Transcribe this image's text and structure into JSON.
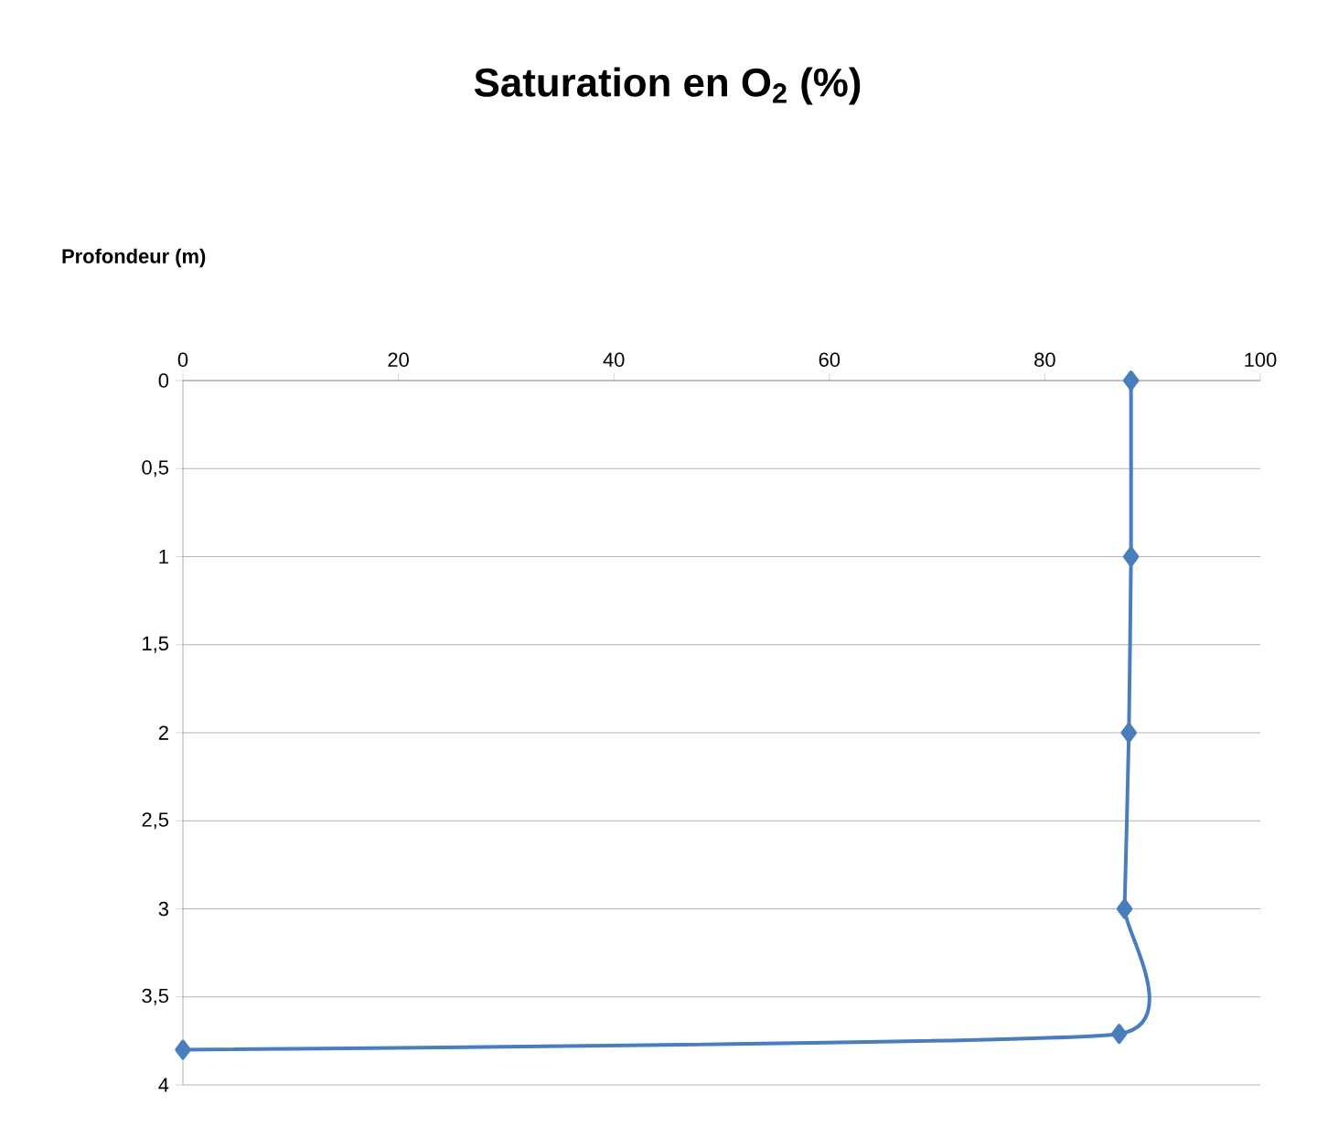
{
  "chart_data": {
    "type": "line",
    "title": "Saturation en O$_{2}$ (%)",
    "ylabel": "Profondeur (m)",
    "series": [
      {
        "color": "#4a7ebb",
        "x": [
          88,
          88,
          87.8,
          87.4,
          86.9,
          0
        ],
        "values": [
          0,
          1,
          2,
          3,
          3.71,
          3.8
        ]
      }
    ],
    "xlim": [
      0,
      100
    ],
    "xticks": [
      0,
      20,
      40,
      60,
      80,
      100
    ],
    "ylim": [
      4,
      0
    ],
    "yticks": [
      0,
      {
        "value": 0.5,
        "label": "0,5"
      },
      1,
      {
        "value": 1.5,
        "label": "1,5"
      },
      2,
      {
        "value": 2.5,
        "label": "2,5"
      },
      3,
      {
        "value": 3.5,
        "label": "3,5"
      },
      4
    ],
    "grid": "y",
    "marker": "diamond",
    "line_style": "solid"
  }
}
